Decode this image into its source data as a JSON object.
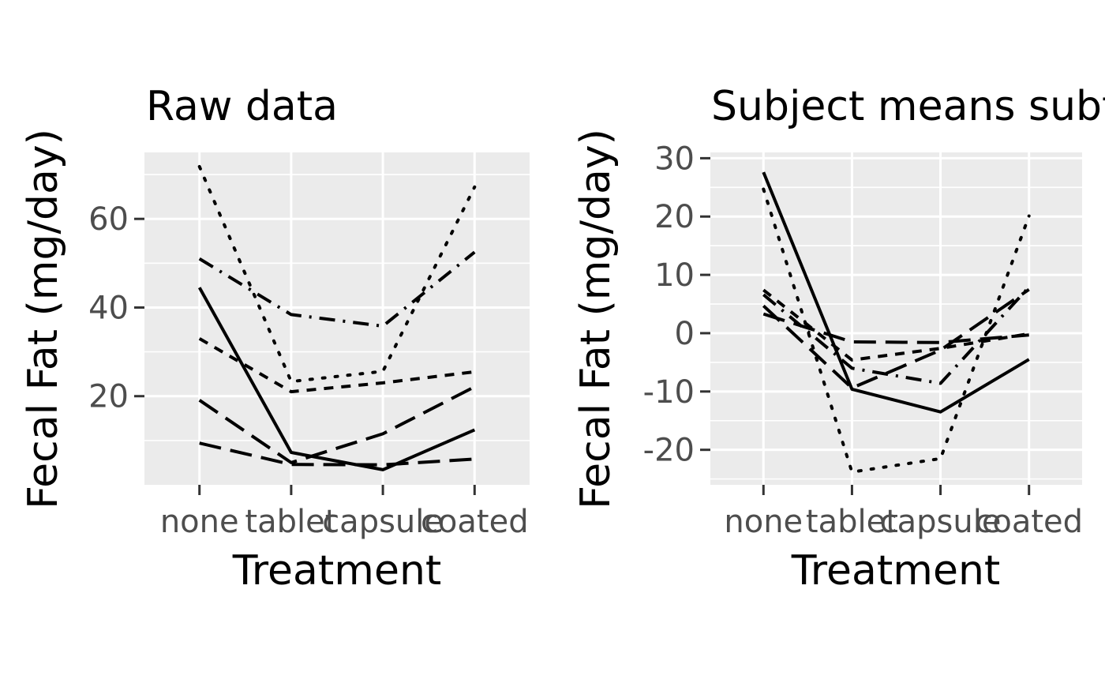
{
  "chart_data": [
    {
      "type": "line",
      "title": "Raw data",
      "xlabel": "Treatment",
      "ylabel": "Fecal Fat (mg/day)",
      "categories": [
        "none",
        "tablet",
        "capsule",
        "coated"
      ],
      "ylim": [
        0,
        75
      ],
      "yticks": [
        20,
        40,
        60
      ],
      "grid": true,
      "legend": "none",
      "series": [
        {
          "dash": "solid",
          "values": [
            44.5,
            7.3,
            3.4,
            12.4
          ]
        },
        {
          "dash": "dotted",
          "values": [
            71.8,
            23.3,
            25.6,
            67.2
          ]
        },
        {
          "dash": "dashdot",
          "values": [
            51.0,
            38.4,
            35.8,
            52.5
          ]
        },
        {
          "dash": "dashed",
          "values": [
            33.0,
            21.0,
            23.0,
            25.5
          ]
        },
        {
          "dash": "longdash",
          "values": [
            19.1,
            5.0,
            11.5,
            22.1
          ]
        },
        {
          "dash": "longdash",
          "values": [
            9.4,
            4.6,
            4.5,
            5.8
          ]
        }
      ]
    },
    {
      "type": "line",
      "title": "Subject means subtracted",
      "xlabel": "Treatment",
      "ylabel": "Fecal Fat (mg/day)",
      "categories": [
        "none",
        "tablet",
        "capsule",
        "coated"
      ],
      "ylim": [
        -26,
        31
      ],
      "yticks": [
        30,
        20,
        10,
        0,
        -10,
        -20
      ],
      "ytick_labels": [
        "30",
        "20",
        "10",
        "0",
        "-10",
        "-20"
      ],
      "grid": true,
      "legend": "none",
      "series": [
        {
          "dash": "solid",
          "values": [
            27.6,
            -9.6,
            -13.5,
            -4.5
          ]
        },
        {
          "dash": "dotted",
          "values": [
            24.7,
            -23.8,
            -21.5,
            20.1
          ]
        },
        {
          "dash": "dashdot",
          "values": [
            6.6,
            -6.0,
            -8.6,
            7.9
          ]
        },
        {
          "dash": "dashed",
          "values": [
            7.4,
            -4.6,
            -2.6,
            -0.1
          ]
        },
        {
          "dash": "longdash",
          "values": [
            4.7,
            -9.4,
            -2.9,
            7.5
          ]
        },
        {
          "dash": "longdash",
          "values": [
            3.3,
            -1.5,
            -1.6,
            -0.3
          ]
        }
      ]
    }
  ]
}
